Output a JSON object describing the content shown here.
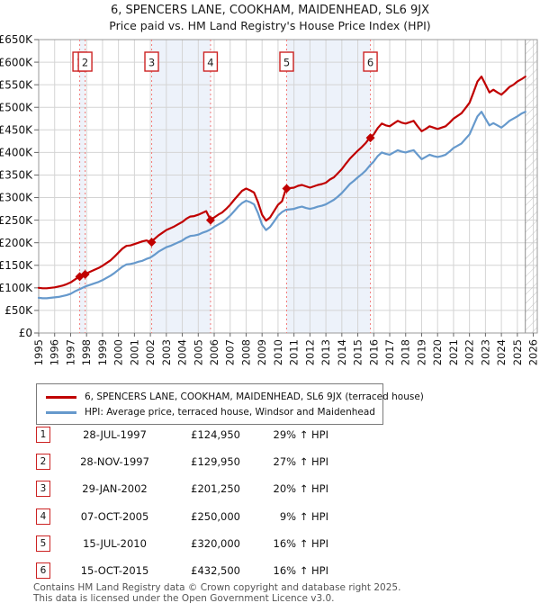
{
  "title": "6, SPENCERS LANE, COOKHAM, MAIDENHEAD, SL6 9JX",
  "subtitle": "Price paid vs. HM Land Registry's House Price Index (HPI)",
  "legend": {
    "items": [
      {
        "label": "6, SPENCERS LANE, COOKHAM, MAIDENHEAD, SL6 9JX (terraced house)",
        "color": "#c00000"
      },
      {
        "label": "HPI: Average price, terraced house, Windsor and Maidenhead",
        "color": "#6699cc"
      }
    ]
  },
  "transactions": [
    {
      "num": "1",
      "date": "28-JUL-1997",
      "price": "£124,950",
      "hpi": "29% ↑ HPI"
    },
    {
      "num": "2",
      "date": "28-NOV-1997",
      "price": "£129,950",
      "hpi": "27% ↑ HPI"
    },
    {
      "num": "3",
      "date": "29-JAN-2002",
      "price": "£201,250",
      "hpi": "20% ↑ HPI"
    },
    {
      "num": "4",
      "date": "07-OCT-2005",
      "price": "£250,000",
      "hpi": "9% ↑ HPI"
    },
    {
      "num": "5",
      "date": "15-JUL-2010",
      "price": "£320,000",
      "hpi": "16% ↑ HPI"
    },
    {
      "num": "6",
      "date": "15-OCT-2015",
      "price": "£432,500",
      "hpi": "16% ↑ HPI"
    }
  ],
  "footer": {
    "line1": "Contains HM Land Registry data © Crown copyright and database right 2025.",
    "line2": "This data is licensed under the Open Government Licence v3.0."
  },
  "chart_data": {
    "type": "line",
    "unit": "GBP_thousands",
    "xlim": [
      1995,
      2026.25
    ],
    "ylim": [
      0,
      650
    ],
    "grid": true,
    "x_ticks": [
      1995,
      1996,
      1997,
      1998,
      1999,
      2000,
      2001,
      2002,
      2003,
      2004,
      2005,
      2006,
      2007,
      2008,
      2009,
      2010,
      2011,
      2012,
      2013,
      2014,
      2015,
      2016,
      2017,
      2018,
      2019,
      2020,
      2021,
      2022,
      2023,
      2024,
      2025,
      2026
    ],
    "x_tick_labels": [
      "1995",
      "1996",
      "1997",
      "1998",
      "1999",
      "2000",
      "2001",
      "2002",
      "2003",
      "2004",
      "2005",
      "2006",
      "2007",
      "2008",
      "2009",
      "2010",
      "2011",
      "2012",
      "2013",
      "2014",
      "2015",
      "2016",
      "2017",
      "2018",
      "2019",
      "2020",
      "2021",
      "2022",
      "2023",
      "2024",
      "2025",
      "2026"
    ],
    "y_tick_values": [
      0,
      50,
      100,
      150,
      200,
      250,
      300,
      350,
      400,
      450,
      500,
      550,
      600,
      650
    ],
    "y_tick_labels": [
      "£0",
      "£50K",
      "£100K",
      "£150K",
      "£200K",
      "£250K",
      "£300K",
      "£350K",
      "£400K",
      "£450K",
      "£500K",
      "£550K",
      "£600K",
      "£650K"
    ],
    "x_start": 1995.0,
    "x_step": 0.25,
    "band_color": "#edf2fa",
    "bands": [
      [
        1997.57,
        1997.91
      ],
      [
        2002.08,
        2005.77
      ],
      [
        2010.54,
        2015.79
      ]
    ],
    "hatch_from": 2025.5,
    "series": [
      {
        "name": "price-paid",
        "color": "#c00000",
        "values": [
          100,
          99,
          99,
          100,
          101,
          103,
          105,
          108,
          112,
          118,
          124,
          128,
          132,
          136,
          140,
          144,
          149,
          155,
          161,
          169,
          178,
          187,
          193,
          194,
          197,
          200,
          203,
          205,
          202,
          208,
          216,
          222,
          228,
          232,
          236,
          241,
          246,
          253,
          258,
          259,
          262,
          266,
          270,
          252,
          256,
          262,
          267,
          275,
          284,
          295,
          305,
          315,
          320,
          316,
          311,
          289,
          262,
          249,
          256,
          270,
          284,
          292,
          320,
          321,
          322,
          326,
          328,
          325,
          322,
          325,
          328,
          330,
          333,
          340,
          345,
          354,
          363,
          375,
          386,
          395,
          404,
          412,
          421,
          433,
          440,
          454,
          464,
          460,
          458,
          464,
          470,
          466,
          464,
          467,
          470,
          458,
          447,
          452,
          458,
          455,
          452,
          455,
          458,
          466,
          475,
          481,
          487,
          498,
          510,
          533,
          557,
          568,
          551,
          533,
          539,
          533,
          528,
          536,
          545,
          550,
          557,
          562,
          568
        ]
      },
      {
        "name": "hpi",
        "color": "#6699cc",
        "values": [
          78,
          77,
          77,
          78,
          79,
          80,
          82,
          84,
          87,
          92,
          96,
          100,
          104,
          107,
          110,
          113,
          117,
          122,
          127,
          133,
          140,
          147,
          152,
          153,
          155,
          158,
          160,
          164,
          167,
          173,
          180,
          185,
          190,
          193,
          197,
          201,
          205,
          211,
          215,
          216,
          218,
          222,
          225,
          229,
          235,
          240,
          245,
          252,
          260,
          270,
          280,
          288,
          293,
          290,
          285,
          265,
          240,
          228,
          235,
          247,
          260,
          268,
          273,
          274,
          275,
          278,
          280,
          277,
          275,
          277,
          280,
          282,
          285,
          290,
          295,
          302,
          310,
          320,
          330,
          337,
          345,
          352,
          360,
          371,
          380,
          392,
          400,
          397,
          395,
          400,
          405,
          402,
          400,
          403,
          405,
          395,
          385,
          390,
          395,
          392,
          390,
          392,
          395,
          402,
          410,
          415,
          420,
          430,
          440,
          460,
          480,
          490,
          475,
          460,
          465,
          460,
          455,
          462,
          470,
          475,
          480,
          486,
          490
        ]
      }
    ],
    "sale_markers": [
      {
        "n": "1",
        "year": 1997.57,
        "value": 124.95
      },
      {
        "n": "2",
        "year": 1997.91,
        "value": 129.95
      },
      {
        "n": "3",
        "year": 2002.08,
        "value": 201.25
      },
      {
        "n": "4",
        "year": 2005.77,
        "value": 250
      },
      {
        "n": "5",
        "year": 2010.54,
        "value": 320
      },
      {
        "n": "6",
        "year": 2015.79,
        "value": 432.5
      }
    ]
  }
}
